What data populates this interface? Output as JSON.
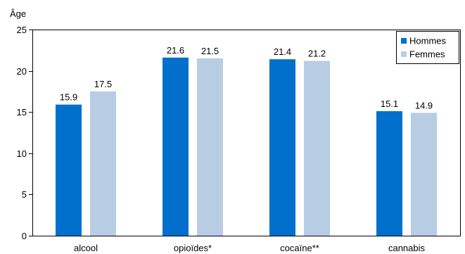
{
  "chart_data": {
    "type": "bar",
    "ylabel": "Âge",
    "xlabel": "",
    "title": "",
    "ylim": [
      0,
      25
    ],
    "yticks": [
      0,
      5,
      10,
      15,
      20,
      25
    ],
    "grid": false,
    "legend_position": "top-right",
    "categories": [
      "alcool",
      "opioïdes*",
      "cocaïne**",
      "cannabis"
    ],
    "series": [
      {
        "name": "Hommes",
        "color": "#0070CC",
        "values": [
          15.9,
          21.6,
          21.4,
          15.1
        ],
        "labels": [
          "15.9",
          "21.6",
          "21.4",
          "15.1"
        ]
      },
      {
        "name": "Femmes",
        "color": "#B8CCE4",
        "values": [
          17.5,
          21.5,
          21.2,
          14.9
        ],
        "labels": [
          "17.5",
          "21.5",
          "21.2",
          "14.9"
        ]
      }
    ]
  }
}
